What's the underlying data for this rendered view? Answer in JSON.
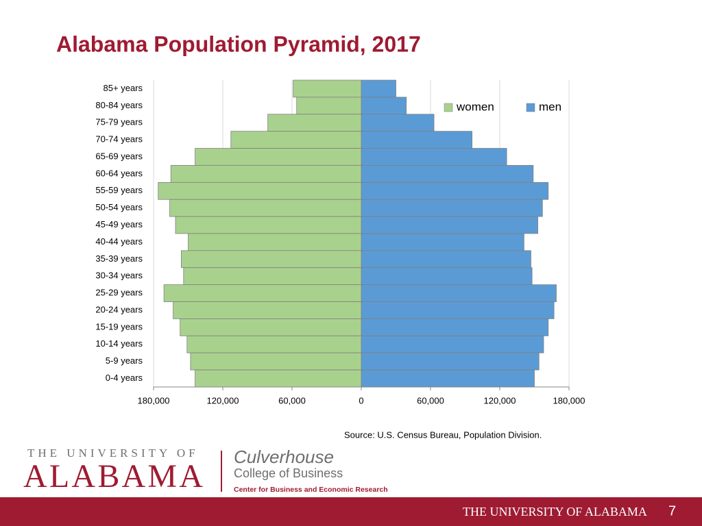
{
  "chart_data": {
    "type": "pyramid",
    "title": "Alabama Population Pyramid, 2017",
    "source": "Source: U.S. Census Bureau, Population Division.",
    "categories": [
      "85+ years",
      "80-84 years",
      "75-79 years",
      "70-74 years",
      "65-69 years",
      "60-64 years",
      "55-59 years",
      "50-54 years",
      "45-49 years",
      "40-44 years",
      "35-39 years",
      "30-34 years",
      "25-29 years",
      "20-24 years",
      "15-19 years",
      "10-14 years",
      "5-9 years",
      "0-4 years"
    ],
    "series": [
      {
        "name": "women",
        "color": "#a9d18e",
        "values": [
          -59000,
          -56000,
          -81000,
          -113000,
          -144000,
          -165000,
          -176000,
          -166000,
          -161000,
          -150000,
          -156000,
          -154000,
          -171000,
          -163000,
          -157000,
          -151000,
          -148000,
          -144000
        ]
      },
      {
        "name": "men",
        "color": "#5b9bd5",
        "values": [
          30000,
          39000,
          63000,
          96000,
          126000,
          149000,
          162000,
          157000,
          153000,
          141000,
          147000,
          148000,
          169000,
          167000,
          162000,
          158000,
          154000,
          150000
        ]
      }
    ],
    "xlim": [
      -180000,
      180000
    ],
    "xticks": [
      {
        "value": -180000,
        "label": "180,000"
      },
      {
        "value": -120000,
        "label": "120,000"
      },
      {
        "value": -60000,
        "label": "60,000"
      },
      0,
      {
        "value": 60000,
        "label": "60,000"
      },
      {
        "value": 120000,
        "label": "120,000"
      },
      {
        "value": 180000,
        "label": "180,000"
      }
    ],
    "grid": true,
    "legend": "top-right"
  },
  "footer": {
    "university_line": "THE UNIVERSITY OF",
    "university_name": "ALABAMA",
    "college_name": "Culverhouse",
    "college_line": "College of Business",
    "center": "Center for Business and Economic Research",
    "banner": "THE UNIVERSITY OF ALABAMA",
    "page_number": "7"
  }
}
